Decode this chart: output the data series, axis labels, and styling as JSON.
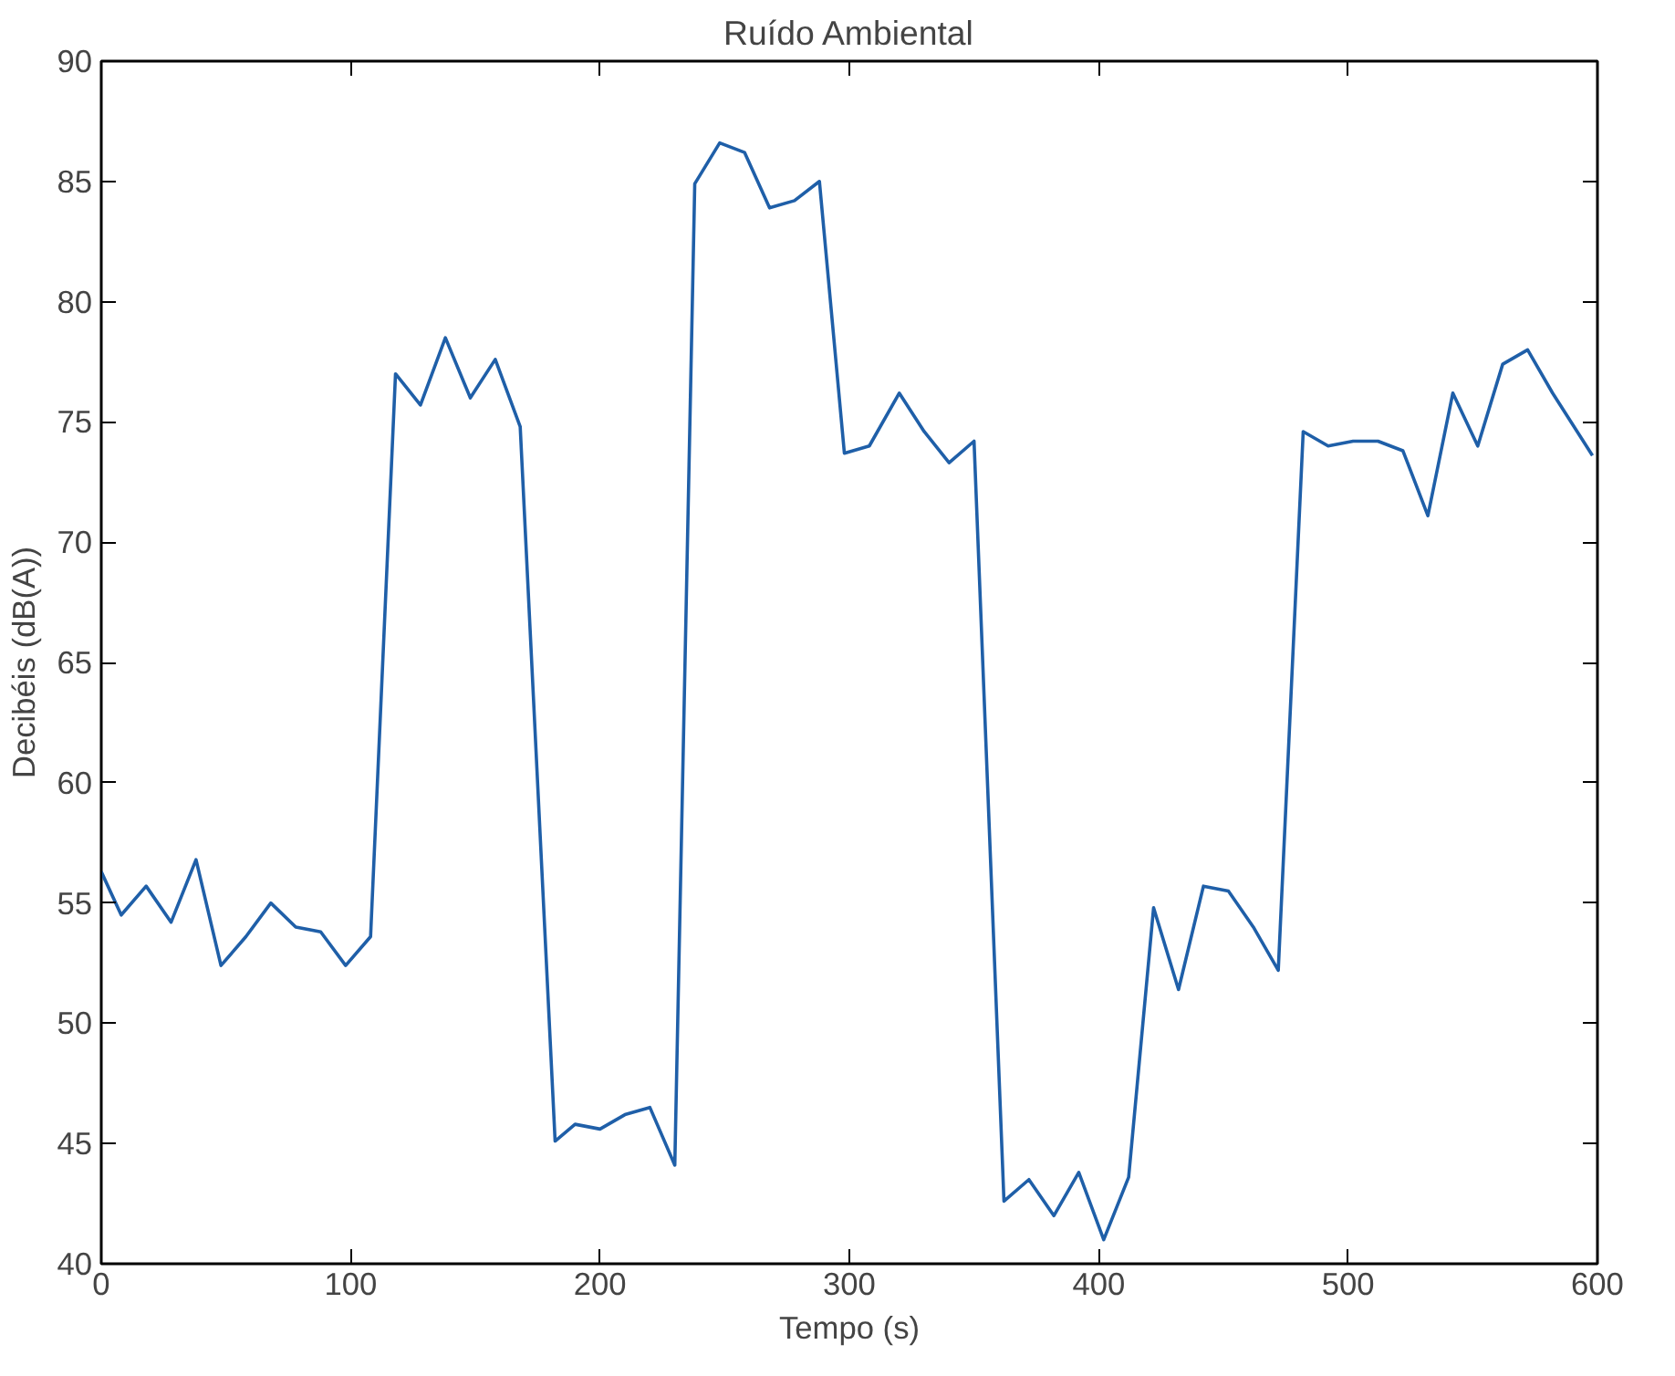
{
  "chart_data": {
    "type": "line",
    "title": "Ruído Ambiental",
    "xlabel": "Tempo (s)",
    "ylabel": "Decibéis (dB(A))",
    "x": [
      0,
      8,
      18,
      28,
      38,
      48,
      58,
      68,
      78,
      88,
      98,
      108,
      118,
      128,
      138,
      148,
      158,
      168,
      182,
      190,
      200,
      210,
      220,
      230,
      238,
      248,
      258,
      268,
      278,
      288,
      298,
      308,
      320,
      330,
      340,
      350,
      362,
      372,
      382,
      392,
      402,
      412,
      422,
      432,
      442,
      452,
      462,
      472,
      482,
      492,
      502,
      512,
      522,
      532,
      542,
      552,
      562,
      572,
      582,
      598
    ],
    "series": [
      {
        "color": "#1f5fa8",
        "values": [
          56.3,
          54.5,
          55.7,
          54.2,
          56.8,
          52.4,
          53.6,
          55.0,
          54.0,
          53.8,
          52.4,
          53.6,
          77.0,
          75.7,
          78.5,
          76.0,
          77.6,
          74.8,
          45.1,
          45.8,
          45.6,
          46.2,
          46.5,
          44.1,
          84.9,
          86.6,
          86.2,
          83.9,
          84.2,
          85.0,
          73.7,
          74.0,
          76.2,
          74.6,
          73.3,
          74.2,
          42.6,
          43.5,
          42.0,
          43.8,
          41.0,
          43.6,
          54.8,
          51.4,
          55.7,
          55.5,
          54.0,
          52.2,
          74.6,
          74.0,
          74.2,
          74.2,
          73.8,
          71.1,
          76.2,
          74.0,
          77.4,
          78.0,
          76.2,
          73.6
        ]
      }
    ],
    "xlim": [
      0,
      600
    ],
    "ylim": [
      40,
      90
    ],
    "xticks": [
      0,
      100,
      200,
      300,
      400,
      500,
      600
    ],
    "yticks": [
      40,
      45,
      50,
      55,
      60,
      65,
      70,
      75,
      80,
      85,
      90
    ],
    "grid": false,
    "marker": "none",
    "line_style": "solid"
  }
}
